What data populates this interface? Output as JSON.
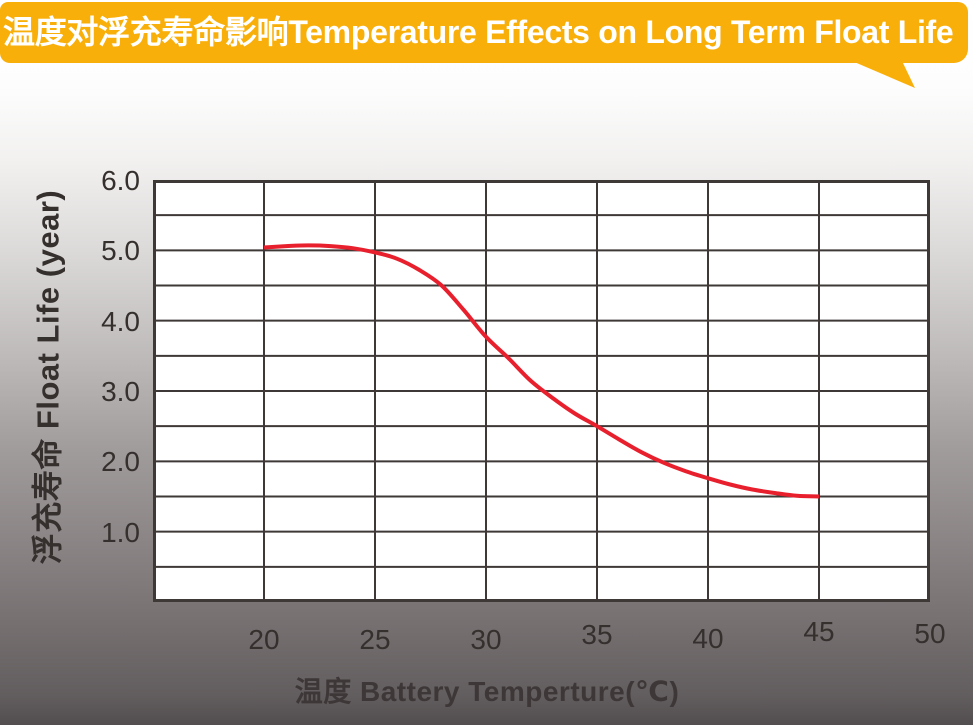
{
  "banner": {
    "title_zh": "温度对浮充寿命影响",
    "title_en": "Temperature Effects on Long Term Float Life"
  },
  "colors": {
    "banner_bg": "#F9AF0A",
    "title_text": "#FFFFFF",
    "curve_red": "#E8202E",
    "grid_dark": "#3E3836",
    "label_dark": "#35302E",
    "axis_title_dark": "#3E3738"
  },
  "chart_data": {
    "type": "line",
    "title": "温度对浮充寿命影响Temperature Effects on Long Term Float Life",
    "xlabel": "温度  Battery  Temperture(℃)",
    "ylabel": "浮充寿命  Float Life (year)",
    "xlim": [
      15,
      50
    ],
    "ylim": [
      0,
      6
    ],
    "grid": true,
    "x_grid_step": 5,
    "y_grid_step": 0.5,
    "x_tick_labels": [
      "20",
      "25",
      "30",
      "35",
      "40",
      "45",
      "50"
    ],
    "x_tick_values": [
      20,
      25,
      30,
      35,
      40,
      45,
      50
    ],
    "y_tick_labels": [
      "6.0",
      "5.0",
      "4.0",
      "3.0",
      "2.0",
      "1.0"
    ],
    "y_tick_values": [
      6.0,
      5.0,
      4.0,
      3.0,
      2.0,
      1.0
    ],
    "legend_position": "none",
    "series": [
      {
        "name": "float-life-vs-temperature",
        "x": [
          20,
          21,
          22,
          23,
          24,
          25,
          26,
          27,
          28,
          29,
          30,
          31,
          32,
          33,
          34,
          35,
          36,
          37,
          38,
          39,
          40,
          41,
          42,
          43,
          44,
          45
        ],
        "y": [
          5.04,
          5.06,
          5.07,
          5.06,
          5.03,
          4.97,
          4.88,
          4.72,
          4.5,
          4.15,
          3.77,
          3.47,
          3.15,
          2.9,
          2.68,
          2.5,
          2.31,
          2.13,
          1.98,
          1.86,
          1.76,
          1.67,
          1.6,
          1.55,
          1.51,
          1.5
        ]
      }
    ]
  }
}
